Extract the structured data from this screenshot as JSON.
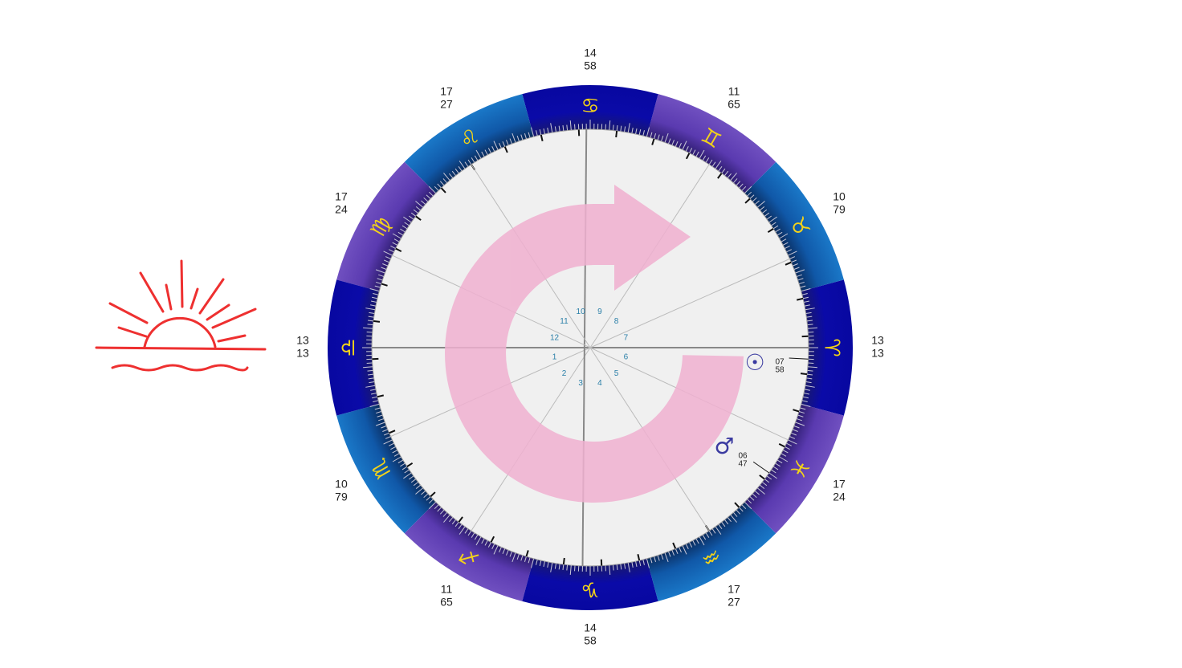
{
  "wheel": {
    "signs": [
      "♈",
      "♉",
      "♊",
      "♋",
      "♌",
      "♍",
      "♎",
      "♏",
      "♐",
      "♑",
      "♒",
      "♓"
    ],
    "cusps": [
      [
        "13",
        "13"
      ],
      [
        "10",
        "79"
      ],
      [
        "11",
        "65"
      ],
      [
        "14",
        "58"
      ],
      [
        "17",
        "27"
      ],
      [
        "17",
        "24"
      ],
      [
        "13",
        "13"
      ],
      [
        "10",
        "79"
      ],
      [
        "11",
        "65"
      ],
      [
        "14",
        "58"
      ],
      [
        "17",
        "27"
      ],
      [
        "17",
        "24"
      ]
    ],
    "houses": [
      "1",
      "2",
      "3",
      "4",
      "5",
      "6",
      "7",
      "8",
      "9",
      "10",
      "11",
      "12"
    ],
    "planets": [
      {
        "symbol": "☉",
        "label": [
          "07",
          "58"
        ]
      },
      {
        "symbol": "♂",
        "label": [
          "06",
          "47"
        ]
      }
    ]
  }
}
